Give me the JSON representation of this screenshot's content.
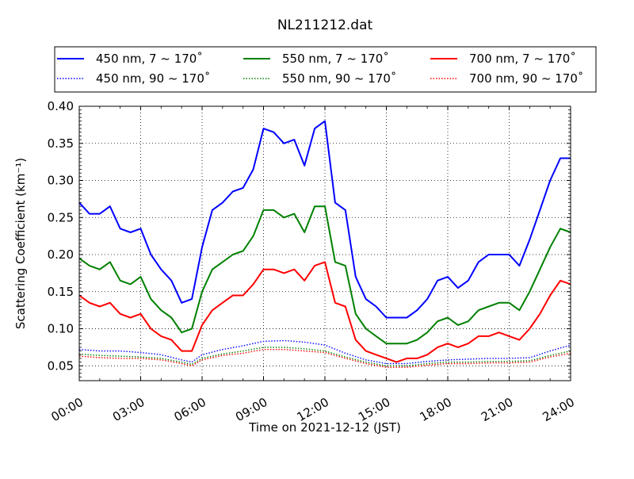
{
  "chart_data": {
    "type": "line",
    "title": "NL211212.dat",
    "xlabel": "Time on 2021-12-12 (JST)",
    "ylabel": "Scattering Coefficient (km⁻¹)",
    "xlim": [
      0,
      24
    ],
    "ylim": [
      0.03,
      0.4
    ],
    "xticks": [
      0,
      3,
      6,
      9,
      12,
      15,
      18,
      21,
      24
    ],
    "xtick_labels": [
      "00:00",
      "03:00",
      "06:00",
      "09:00",
      "12:00",
      "15:00",
      "18:00",
      "21:00",
      "24:00"
    ],
    "yticks": [
      0.05,
      0.1,
      0.15,
      0.2,
      0.25,
      0.3,
      0.35,
      0.4
    ],
    "ytick_labels": [
      "0.05",
      "0.10",
      "0.15",
      "0.20",
      "0.25",
      "0.30",
      "0.35",
      "0.40"
    ],
    "grid": true,
    "legend_position": "top",
    "colors": {
      "blue": "#0000ff",
      "green": "#008000",
      "red": "#ff0000"
    },
    "series": [
      {
        "name": "450 nm, 7 ~ 170˚",
        "color": "#0000ff",
        "style": "solid",
        "x": [
          0,
          0.5,
          1,
          1.5,
          2,
          2.5,
          3,
          3.5,
          4,
          4.5,
          5,
          5.5,
          6,
          6.5,
          7,
          7.5,
          8,
          8.5,
          9,
          9.5,
          10,
          10.5,
          11,
          11.5,
          12,
          12.5,
          13,
          13.5,
          14,
          14.5,
          15,
          15.5,
          16,
          16.5,
          17,
          17.5,
          18,
          18.5,
          19,
          19.5,
          20,
          20.5,
          21,
          21.5,
          22,
          22.5,
          23,
          23.5,
          24
        ],
        "y": [
          0.27,
          0.255,
          0.255,
          0.265,
          0.235,
          0.23,
          0.235,
          0.2,
          0.18,
          0.165,
          0.135,
          0.14,
          0.21,
          0.26,
          0.27,
          0.285,
          0.29,
          0.315,
          0.37,
          0.365,
          0.35,
          0.355,
          0.32,
          0.37,
          0.38,
          0.27,
          0.26,
          0.17,
          0.14,
          0.13,
          0.115,
          0.115,
          0.115,
          0.125,
          0.14,
          0.165,
          0.17,
          0.155,
          0.165,
          0.19,
          0.2,
          0.2,
          0.2,
          0.185,
          0.22,
          0.26,
          0.3,
          0.33,
          0.33
        ]
      },
      {
        "name": "550 nm, 7 ~ 170˚",
        "color": "#008000",
        "style": "solid",
        "x": [
          0,
          0.5,
          1,
          1.5,
          2,
          2.5,
          3,
          3.5,
          4,
          4.5,
          5,
          5.5,
          6,
          6.5,
          7,
          7.5,
          8,
          8.5,
          9,
          9.5,
          10,
          10.5,
          11,
          11.5,
          12,
          12.5,
          13,
          13.5,
          14,
          14.5,
          15,
          15.5,
          16,
          16.5,
          17,
          17.5,
          18,
          18.5,
          19,
          19.5,
          20,
          20.5,
          21,
          21.5,
          22,
          22.5,
          23,
          23.5,
          24
        ],
        "y": [
          0.195,
          0.185,
          0.18,
          0.19,
          0.165,
          0.16,
          0.17,
          0.14,
          0.125,
          0.115,
          0.095,
          0.1,
          0.15,
          0.18,
          0.19,
          0.2,
          0.205,
          0.225,
          0.26,
          0.26,
          0.25,
          0.255,
          0.23,
          0.265,
          0.265,
          0.19,
          0.185,
          0.12,
          0.1,
          0.09,
          0.08,
          0.08,
          0.08,
          0.085,
          0.095,
          0.11,
          0.115,
          0.105,
          0.11,
          0.125,
          0.13,
          0.135,
          0.135,
          0.125,
          0.15,
          0.18,
          0.21,
          0.235,
          0.23
        ]
      },
      {
        "name": "700 nm, 7 ~ 170˚",
        "color": "#ff0000",
        "style": "solid",
        "x": [
          0,
          0.5,
          1,
          1.5,
          2,
          2.5,
          3,
          3.5,
          4,
          4.5,
          5,
          5.5,
          6,
          6.5,
          7,
          7.5,
          8,
          8.5,
          9,
          9.5,
          10,
          10.5,
          11,
          11.5,
          12,
          12.5,
          13,
          13.5,
          14,
          14.5,
          15,
          15.5,
          16,
          16.5,
          17,
          17.5,
          18,
          18.5,
          19,
          19.5,
          20,
          20.5,
          21,
          21.5,
          22,
          22.5,
          23,
          23.5,
          24
        ],
        "y": [
          0.145,
          0.135,
          0.13,
          0.135,
          0.12,
          0.115,
          0.12,
          0.1,
          0.09,
          0.085,
          0.07,
          0.07,
          0.105,
          0.125,
          0.135,
          0.145,
          0.145,
          0.16,
          0.18,
          0.18,
          0.175,
          0.18,
          0.165,
          0.185,
          0.19,
          0.135,
          0.13,
          0.085,
          0.07,
          0.065,
          0.06,
          0.055,
          0.06,
          0.06,
          0.065,
          0.075,
          0.08,
          0.075,
          0.08,
          0.09,
          0.09,
          0.095,
          0.09,
          0.085,
          0.1,
          0.12,
          0.145,
          0.165,
          0.16
        ]
      },
      {
        "name": "450 nm, 90 ~ 170˚",
        "color": "#0000ff",
        "style": "dotted",
        "x": [
          0,
          1,
          2,
          3,
          4,
          5,
          5.5,
          6,
          7,
          8,
          9,
          10,
          11,
          12,
          13,
          14,
          15,
          16,
          17,
          18,
          19,
          20,
          21,
          22,
          23,
          24
        ],
        "y": [
          0.072,
          0.07,
          0.07,
          0.068,
          0.065,
          0.058,
          0.055,
          0.065,
          0.072,
          0.077,
          0.083,
          0.084,
          0.082,
          0.078,
          0.067,
          0.058,
          0.053,
          0.053,
          0.056,
          0.058,
          0.059,
          0.06,
          0.06,
          0.061,
          0.07,
          0.078
        ]
      },
      {
        "name": "550 nm, 90 ~ 170˚",
        "color": "#008000",
        "style": "dotted",
        "x": [
          0,
          1,
          2,
          3,
          4,
          5,
          5.5,
          6,
          7,
          8,
          9,
          10,
          11,
          12,
          13,
          14,
          15,
          16,
          17,
          18,
          19,
          20,
          21,
          22,
          23,
          24
        ],
        "y": [
          0.066,
          0.064,
          0.063,
          0.062,
          0.06,
          0.055,
          0.052,
          0.06,
          0.066,
          0.07,
          0.075,
          0.075,
          0.073,
          0.07,
          0.062,
          0.055,
          0.05,
          0.05,
          0.053,
          0.055,
          0.055,
          0.056,
          0.056,
          0.057,
          0.064,
          0.07
        ]
      },
      {
        "name": "700 nm, 90 ~ 170˚",
        "color": "#ff0000",
        "style": "dotted",
        "x": [
          0,
          1,
          2,
          3,
          4,
          5,
          5.5,
          6,
          7,
          8,
          9,
          10,
          11,
          12,
          13,
          14,
          15,
          16,
          17,
          18,
          19,
          20,
          21,
          22,
          23,
          24
        ],
        "y": [
          0.063,
          0.061,
          0.06,
          0.06,
          0.058,
          0.053,
          0.05,
          0.058,
          0.064,
          0.067,
          0.072,
          0.072,
          0.07,
          0.068,
          0.06,
          0.053,
          0.048,
          0.048,
          0.051,
          0.053,
          0.053,
          0.054,
          0.054,
          0.055,
          0.062,
          0.067
        ]
      }
    ]
  }
}
